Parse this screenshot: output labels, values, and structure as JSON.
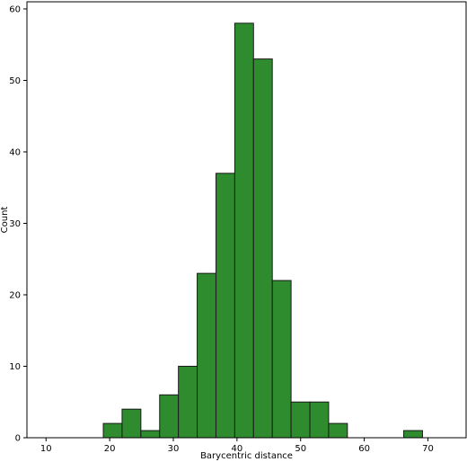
{
  "chart_data": {
    "type": "bar",
    "title": "",
    "xlabel": "Barycentric distance",
    "ylabel": "Count",
    "xlim": [
      7,
      76
    ],
    "ylim": [
      0,
      61
    ],
    "grid": false,
    "bar_color": "#2e8b2e",
    "edge_color": "#1a1a1a",
    "x_ticks": [
      10,
      20,
      30,
      40,
      50,
      60,
      70
    ],
    "y_ticks": [
      0,
      10,
      20,
      30,
      40,
      50,
      60
    ],
    "bin_width": 2.95,
    "bins": [
      {
        "x0": 19.0,
        "count": 2
      },
      {
        "x0": 21.95,
        "count": 4
      },
      {
        "x0": 24.9,
        "count": 1
      },
      {
        "x0": 27.85,
        "count": 6
      },
      {
        "x0": 30.8,
        "count": 10
      },
      {
        "x0": 33.75,
        "count": 23
      },
      {
        "x0": 36.7,
        "count": 37
      },
      {
        "x0": 39.65,
        "count": 58
      },
      {
        "x0": 42.6,
        "count": 53
      },
      {
        "x0": 45.55,
        "count": 22
      },
      {
        "x0": 48.5,
        "count": 5
      },
      {
        "x0": 51.45,
        "count": 5
      },
      {
        "x0": 54.4,
        "count": 2
      },
      {
        "x0": 57.35,
        "count": 0
      },
      {
        "x0": 60.3,
        "count": 0
      },
      {
        "x0": 63.25,
        "count": 0
      },
      {
        "x0": 66.2,
        "count": 1
      }
    ]
  }
}
